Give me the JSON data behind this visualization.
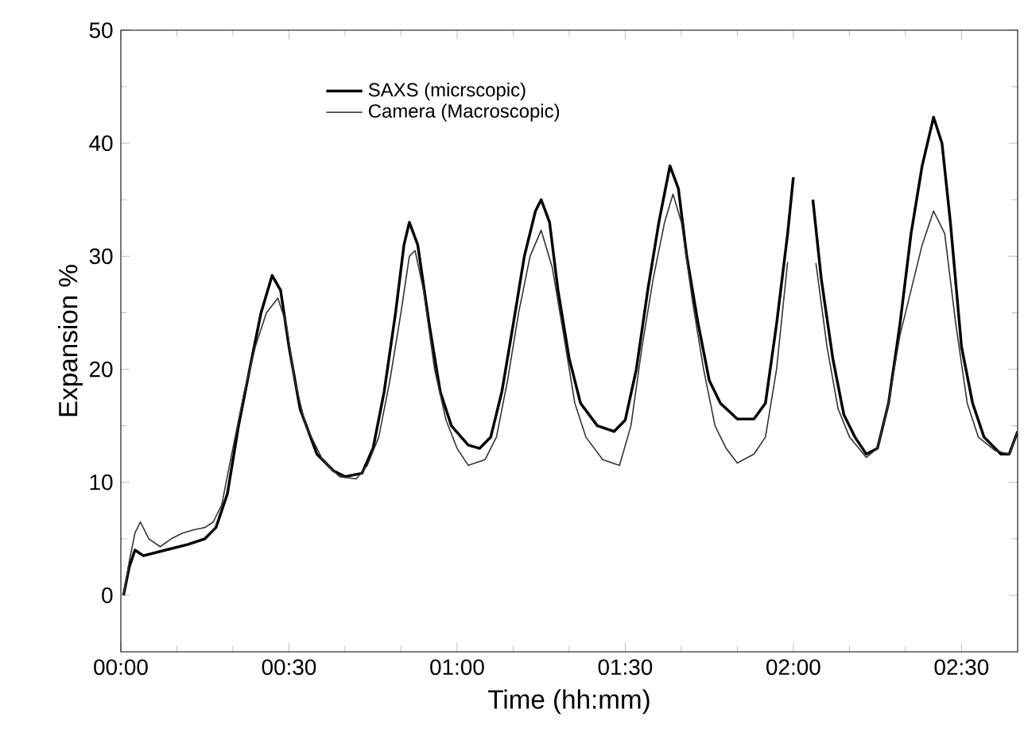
{
  "chart_data": {
    "type": "line",
    "xlabel": "Time (hh:mm)",
    "ylabel": "Expansion %",
    "xlim": [
      0,
      2.667
    ],
    "ylim": [
      -5,
      50
    ],
    "xticks": [
      {
        "value": 0,
        "label": "00:00"
      },
      {
        "value": 0.5,
        "label": "00:30"
      },
      {
        "value": 1,
        "label": "01:00"
      },
      {
        "value": 1.5,
        "label": "01:30"
      },
      {
        "value": 2,
        "label": "02:00"
      },
      {
        "value": 2.5,
        "label": "02:30"
      }
    ],
    "yticks": [
      0,
      10,
      20,
      30,
      40,
      50
    ],
    "legend": "top left",
    "grid": false,
    "marker": "none",
    "line_style": "solid",
    "series": [
      {
        "name": "SAXS (micrscopic)",
        "color": "#000000",
        "x": [
          0.008,
          0.025,
          0.042,
          0.067,
          0.133,
          0.2,
          0.25,
          0.283,
          0.317,
          0.35,
          0.383,
          0.417,
          0.45,
          0.475,
          0.5,
          0.533,
          0.583,
          0.633,
          0.667,
          0.717,
          0.75,
          0.783,
          0.817,
          0.842,
          0.858,
          0.883,
          0.917,
          0.95,
          0.983,
          1.033,
          1.067,
          1.1,
          1.133,
          1.167,
          1.2,
          1.233,
          1.25,
          1.275,
          1.3,
          1.333,
          1.367,
          1.417,
          1.467,
          1.5,
          1.533,
          1.567,
          1.6,
          1.633,
          1.658,
          1.683,
          1.717,
          1.75,
          1.783,
          1.833,
          1.883,
          1.917,
          1.95,
          1.983,
          2.0,
          2.03,
          2.058,
          2.083,
          2.117,
          2.15,
          2.183,
          2.217,
          2.25,
          2.283,
          2.317,
          2.35,
          2.383,
          2.417,
          2.442,
          2.467,
          2.5,
          2.533,
          2.567,
          2.617,
          2.642,
          2.667
        ],
        "values": [
          0,
          2.5,
          4,
          3.5,
          4,
          4.5,
          5,
          6,
          9,
          15,
          20,
          25,
          28.3,
          27,
          22,
          16.5,
          12.5,
          11,
          10.5,
          10.8,
          13,
          18,
          25,
          31,
          33,
          31,
          24,
          18,
          15,
          13.3,
          13,
          14,
          18,
          24,
          30,
          34,
          35,
          33,
          27,
          21,
          17,
          15,
          14.5,
          15.5,
          20,
          27,
          33,
          38,
          36,
          30,
          24,
          19,
          17,
          15.6,
          15.6,
          17,
          24,
          32,
          37,
          null,
          35,
          28,
          21,
          16,
          14,
          12.5,
          13,
          17,
          24,
          32,
          38,
          42.3,
          40,
          33,
          22,
          17,
          14,
          12.5,
          12.5,
          14.5
        ]
      },
      {
        "name": "Camera (Macroscopic)",
        "color": "#333333",
        "x": [
          0.008,
          0.025,
          0.042,
          0.058,
          0.083,
          0.117,
          0.15,
          0.183,
          0.217,
          0.25,
          0.275,
          0.3,
          0.333,
          0.367,
          0.4,
          0.433,
          0.467,
          0.492,
          0.517,
          0.55,
          0.6,
          0.65,
          0.7,
          0.733,
          0.767,
          0.8,
          0.833,
          0.858,
          0.875,
          0.9,
          0.933,
          0.967,
          1.0,
          1.033,
          1.083,
          1.117,
          1.15,
          1.183,
          1.217,
          1.25,
          1.283,
          1.317,
          1.35,
          1.383,
          1.433,
          1.483,
          1.517,
          1.55,
          1.583,
          1.617,
          1.642,
          1.667,
          1.7,
          1.733,
          1.767,
          1.8,
          1.833,
          1.883,
          1.917,
          1.95,
          1.983,
          2.03,
          2.067,
          2.1,
          2.133,
          2.167,
          2.217,
          2.25,
          2.283,
          2.317,
          2.35,
          2.383,
          2.417,
          2.45,
          2.483,
          2.517,
          2.55,
          2.6,
          2.642,
          2.667
        ],
        "values": [
          0,
          3,
          5.5,
          6.5,
          5,
          4.3,
          5,
          5.5,
          5.8,
          6,
          6.5,
          8,
          13,
          18,
          22,
          25,
          26.3,
          24,
          19,
          15,
          12,
          10.5,
          10.3,
          11.5,
          14,
          19,
          25,
          30,
          30.5,
          27,
          20,
          15.5,
          13,
          11.5,
          12,
          14,
          19,
          25,
          30,
          32.3,
          29,
          23,
          17,
          14,
          12,
          11.5,
          15,
          22,
          28,
          33,
          35.5,
          33,
          26,
          20,
          15,
          13,
          11.7,
          12.5,
          14,
          20,
          29.5,
          null,
          29.4,
          22,
          16.5,
          14,
          12.2,
          13,
          17,
          23,
          27,
          31,
          34,
          32,
          24,
          17,
          14,
          12.8,
          12.5,
          14.5
        ]
      }
    ]
  }
}
